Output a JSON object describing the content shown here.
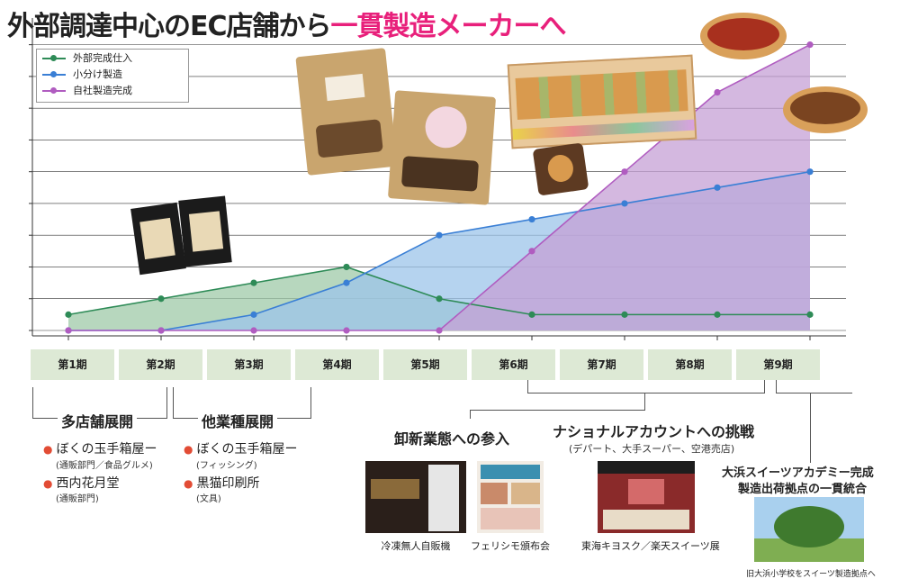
{
  "title": {
    "main": "外部調達中心のEC店舗から",
    "accent": "一貫製造メーカーへ"
  },
  "chart_data": {
    "type": "area",
    "categories": [
      "第1期",
      "第2期",
      "第3期",
      "第4期",
      "第5期",
      "第6期",
      "第7期",
      "第8期",
      "第9期"
    ],
    "series": [
      {
        "name": "外部完成仕入",
        "color": "#2e8b57",
        "fill": "#9fc9a8",
        "values": [
          4,
          8,
          12,
          16,
          8,
          4,
          4,
          4,
          4
        ]
      },
      {
        "name": "小分け製造",
        "color": "#3a7fd5",
        "fill": "#9cc4ea",
        "values": [
          0,
          0,
          4,
          12,
          24,
          28,
          32,
          36,
          40
        ]
      },
      {
        "name": "自社製造完成",
        "color": "#b05cc0",
        "fill": "#c6a0d6",
        "values": [
          0,
          0,
          0,
          0,
          0,
          20,
          40,
          60,
          72
        ]
      }
    ],
    "ylim": [
      0,
      76
    ],
    "grid": true,
    "legend": "top-left"
  },
  "timeline": {
    "groups": [
      {
        "title": "多店舗展開",
        "items": [
          {
            "name": "ぼくの玉手箱屋ー",
            "sub": "(通販部門／食品グルメ)"
          },
          {
            "name": "西内花月堂",
            "sub": "(通販部門)"
          }
        ]
      },
      {
        "title": "他業種展開",
        "items": [
          {
            "name": "ぼくの玉手箱屋ー",
            "sub": "(フィッシング)"
          },
          {
            "name": "黒猫印刷所",
            "sub": "(文具)"
          }
        ]
      }
    ],
    "wholesale": {
      "title": "卸新業態への参入",
      "captions": [
        "冷凍無人自販機",
        "フェリシモ頒布会"
      ]
    },
    "national": {
      "title": "ナショナルアカウントへの挑戦",
      "sub": "(デパート、大手スーパー、空港売店)",
      "caption": "東海キヨスク／楽天スイーツ展"
    },
    "academy": {
      "title_line1": "大浜スイーツアカデミー完成",
      "title_line2": "製造出荷拠点の一貫統合",
      "caption": "旧大浜小学校をスイーツ製造拠点へ"
    }
  },
  "colors": {
    "accent": "#e8207b",
    "period_bg": "#dde9d5",
    "bullet": "#e24c35"
  }
}
